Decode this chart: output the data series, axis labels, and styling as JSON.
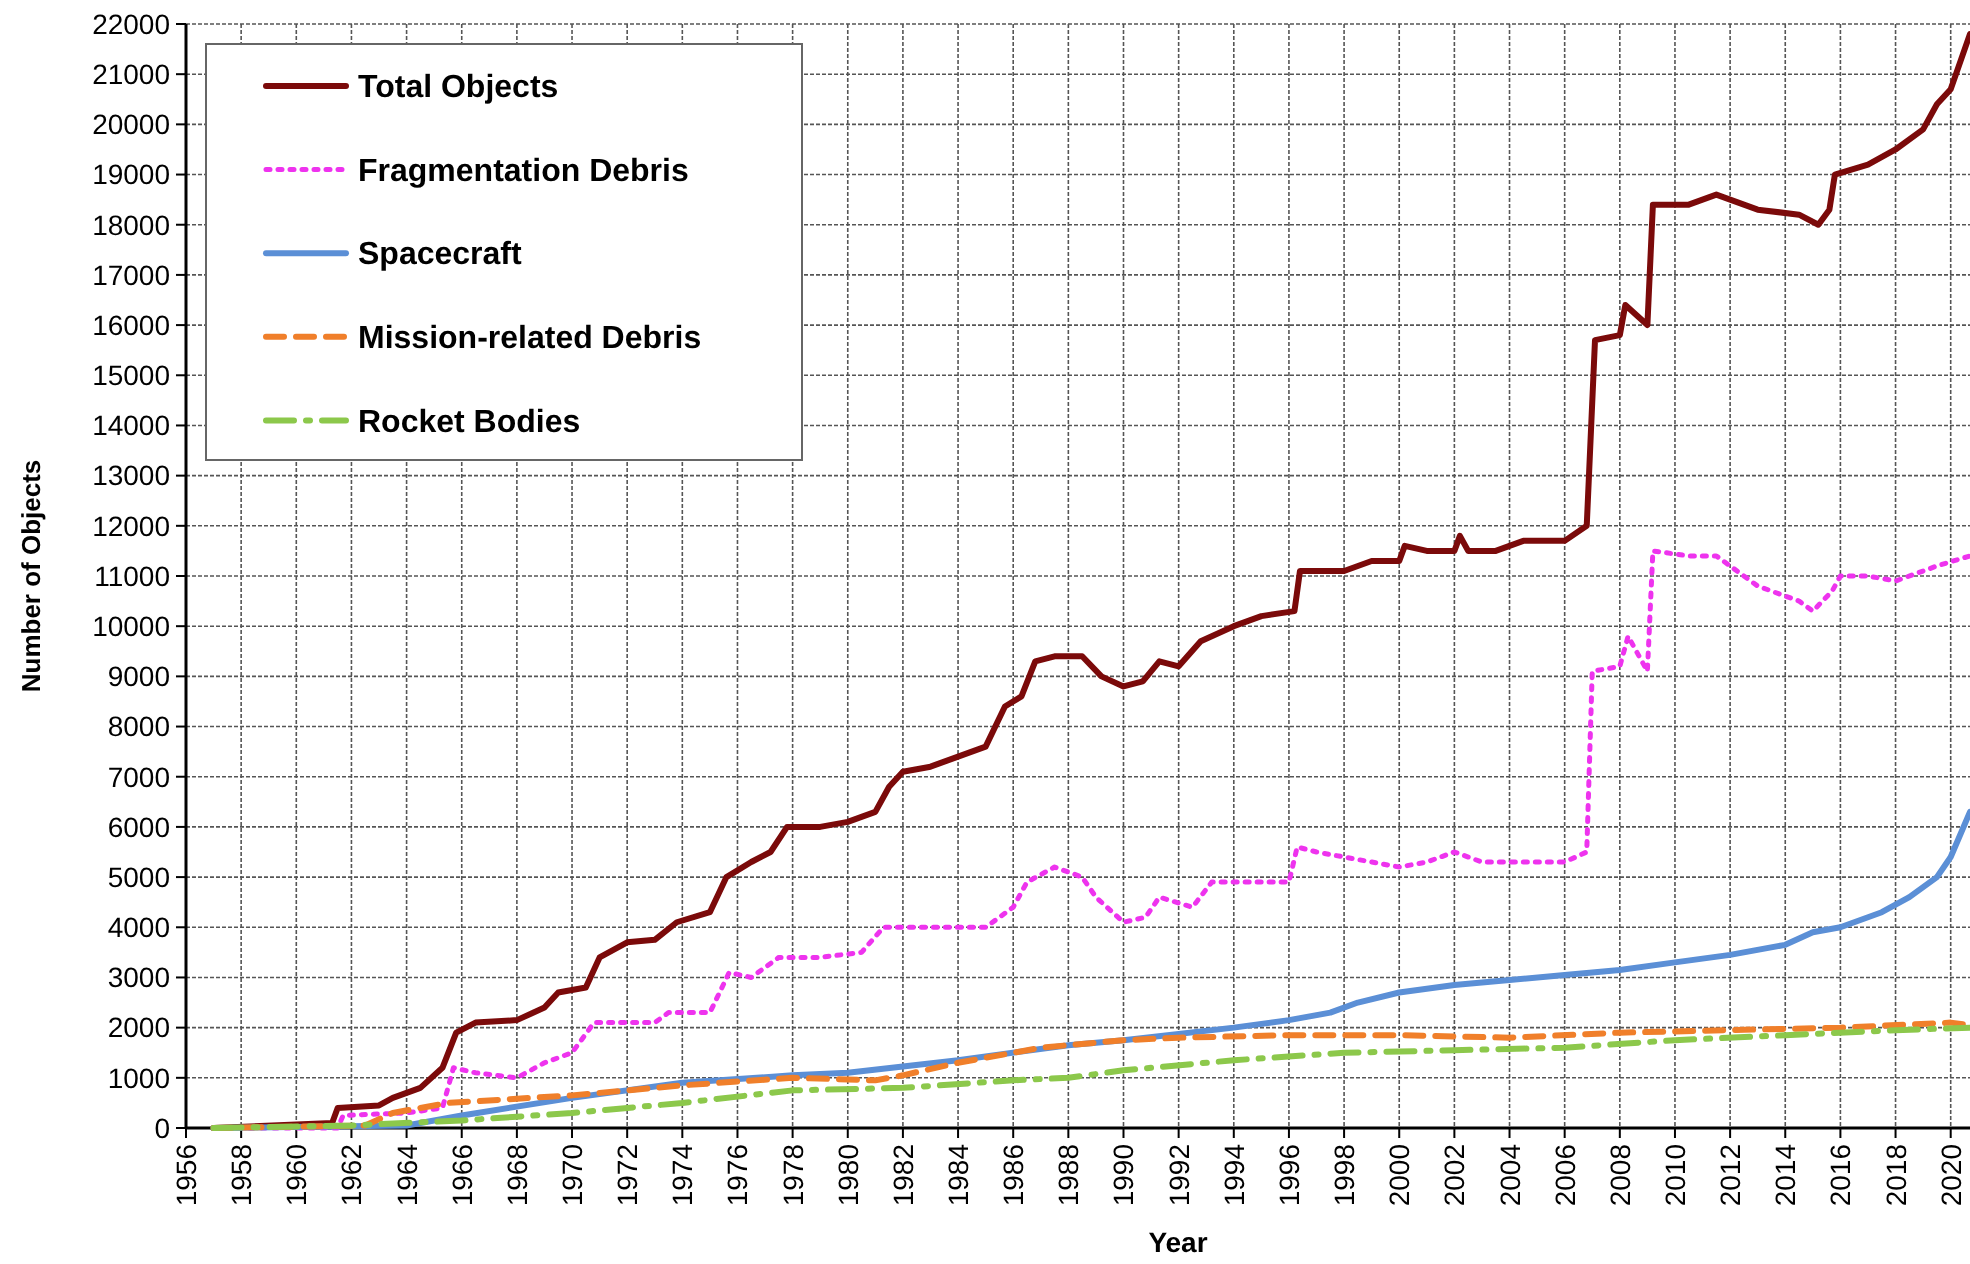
{
  "chart_data": {
    "type": "line",
    "xlabel": "Year",
    "ylabel": "Number of Objects",
    "xlim": [
      1956,
      2020.7
    ],
    "ylim": [
      0,
      22000
    ],
    "xticks": [
      1956,
      1958,
      1960,
      1962,
      1964,
      1966,
      1968,
      1970,
      1972,
      1974,
      1976,
      1978,
      1980,
      1982,
      1984,
      1986,
      1988,
      1990,
      1992,
      1994,
      1996,
      1998,
      2000,
      2002,
      2004,
      2006,
      2008,
      2010,
      2012,
      2014,
      2016,
      2018,
      2020
    ],
    "yticks": [
      0,
      1000,
      2000,
      3000,
      4000,
      5000,
      6000,
      7000,
      8000,
      9000,
      10000,
      11000,
      12000,
      13000,
      14000,
      15000,
      16000,
      17000,
      18000,
      19000,
      20000,
      21000,
      22000
    ],
    "grid": true,
    "legend": "top left",
    "marker": "none",
    "series": [
      {
        "name": "Total Objects",
        "color": "#7b0a0a",
        "line_style": "solid",
        "x": [
          1957,
          1961.3,
          1961.5,
          1963,
          1963.5,
          1964.5,
          1965.3,
          1965.8,
          1966.5,
          1968,
          1969,
          1969.5,
          1970.5,
          1971,
          1972,
          1973,
          1973.8,
          1975,
          1975.6,
          1976.5,
          1977.2,
          1977.8,
          1979,
          1980,
          1981,
          1981.5,
          1982,
          1983,
          1984,
          1985,
          1985.7,
          1986.3,
          1986.8,
          1987.5,
          1988.5,
          1989.2,
          1990,
          1990.7,
          1991.3,
          1992,
          1992.8,
          1994,
          1995,
          1996.2,
          1996.4,
          1997,
          1998,
          1999,
          2000,
          2000.2,
          2001,
          2002,
          2002.2,
          2002.5,
          2003.5,
          2004.5,
          2006,
          2006.8,
          2007.1,
          2008,
          2008.2,
          2009,
          2009.2,
          2010.5,
          2011.5,
          2013,
          2014.5,
          2015.2,
          2015.6,
          2015.8,
          2017,
          2018,
          2019,
          2019.5,
          2020,
          2020.7
        ],
        "values": [
          0,
          100,
          400,
          450,
          600,
          800,
          1200,
          1900,
          2100,
          2150,
          2400,
          2700,
          2800,
          3400,
          3700,
          3750,
          4100,
          4300,
          5000,
          5300,
          5500,
          6000,
          6000,
          6100,
          6300,
          6800,
          7100,
          7200,
          7400,
          7600,
          8400,
          8600,
          9300,
          9400,
          9400,
          9000,
          8800,
          8900,
          9300,
          9200,
          9700,
          10000,
          10200,
          10300,
          11100,
          11100,
          11100,
          11300,
          11300,
          11600,
          11500,
          11500,
          11800,
          11500,
          11500,
          11700,
          11700,
          12000,
          15700,
          15800,
          16400,
          16000,
          18400,
          18400,
          18600,
          18300,
          18200,
          18000,
          18300,
          19000,
          19200,
          19500,
          19900,
          20400,
          20700,
          21800
        ]
      },
      {
        "name": "Fragmentation Debris",
        "color": "#ee33ee",
        "line_style": "dotted",
        "x": [
          1957,
          1961.5,
          1961.7,
          1964,
          1965.3,
          1965.7,
          1966.5,
          1968,
          1969,
          1970,
          1970.8,
          1973,
          1973.5,
          1975,
          1975.7,
          1976.5,
          1977.5,
          1979,
          1980.5,
          1981.3,
          1984,
          1985,
          1986,
          1986.5,
          1987.5,
          1988.5,
          1989,
          1990,
          1990.8,
          1991.3,
          1992.5,
          1993.2,
          1995,
          1996,
          1996.3,
          1997,
          1998,
          2000,
          2001,
          2002,
          2003,
          2004,
          2006,
          2006.8,
          2007,
          2008,
          2008.3,
          2009,
          2009.2,
          2010.5,
          2011.5,
          2013,
          2014.5,
          2015,
          2015.7,
          2016,
          2017,
          2018,
          2019.5,
          2020.7
        ],
        "values": [
          0,
          0,
          250,
          300,
          400,
          1200,
          1100,
          1000,
          1300,
          1500,
          2100,
          2100,
          2300,
          2300,
          3100,
          3000,
          3400,
          3400,
          3500,
          4000,
          4000,
          4000,
          4400,
          4900,
          5200,
          5000,
          4600,
          4100,
          4200,
          4600,
          4400,
          4900,
          4900,
          4900,
          5600,
          5500,
          5400,
          5200,
          5300,
          5500,
          5300,
          5300,
          5300,
          5500,
          9100,
          9200,
          9800,
          9100,
          11500,
          11400,
          11400,
          10800,
          10500,
          10300,
          10700,
          11000,
          11000,
          10900,
          11200,
          11400
        ]
      },
      {
        "name": "Spacecraft",
        "color": "#5b8fd6",
        "line_style": "solid",
        "x": [
          1957,
          1964,
          1966,
          1970,
          1974,
          1978,
          1980,
          1984,
          1988,
          1990,
          1994,
          1996,
          1997.5,
          1998.5,
          2000,
          2002,
          2004,
          2006,
          2008,
          2010,
          2012,
          2014,
          2015,
          2016,
          2017.5,
          2018.5,
          2019.5,
          2020,
          2020.7
        ],
        "values": [
          0,
          50,
          250,
          600,
          900,
          1050,
          1100,
          1350,
          1650,
          1750,
          2000,
          2150,
          2300,
          2500,
          2700,
          2850,
          2950,
          3050,
          3150,
          3300,
          3450,
          3650,
          3900,
          4000,
          4300,
          4600,
          5000,
          5400,
          6300
        ]
      },
      {
        "name": "Mission-related Debris",
        "color": "#f07f2a",
        "line_style": "dashed",
        "x": [
          1957,
          1962.5,
          1963.5,
          1965.5,
          1970,
          1974,
          1978,
          1981,
          1982,
          1984,
          1987,
          1990,
          1992,
          1996,
          2000,
          2004,
          2008,
          2012,
          2016,
          2020,
          2020.7
        ],
        "values": [
          0,
          50,
          300,
          500,
          650,
          850,
          1000,
          950,
          1050,
          1300,
          1600,
          1750,
          1800,
          1850,
          1850,
          1800,
          1900,
          1950,
          2000,
          2100,
          2050
        ]
      },
      {
        "name": "Rocket Bodies",
        "color": "#8cc84b",
        "line_style": "dashdot",
        "x": [
          1957,
          1962,
          1966,
          1970,
          1974,
          1978,
          1982,
          1986,
          1988,
          1990,
          1994,
          1998,
          2002,
          2006,
          2010,
          2014,
          2018,
          2020.7
        ],
        "values": [
          0,
          50,
          150,
          300,
          500,
          750,
          800,
          950,
          1000,
          1150,
          1350,
          1500,
          1550,
          1600,
          1750,
          1850,
          1950,
          2000
        ]
      }
    ]
  }
}
